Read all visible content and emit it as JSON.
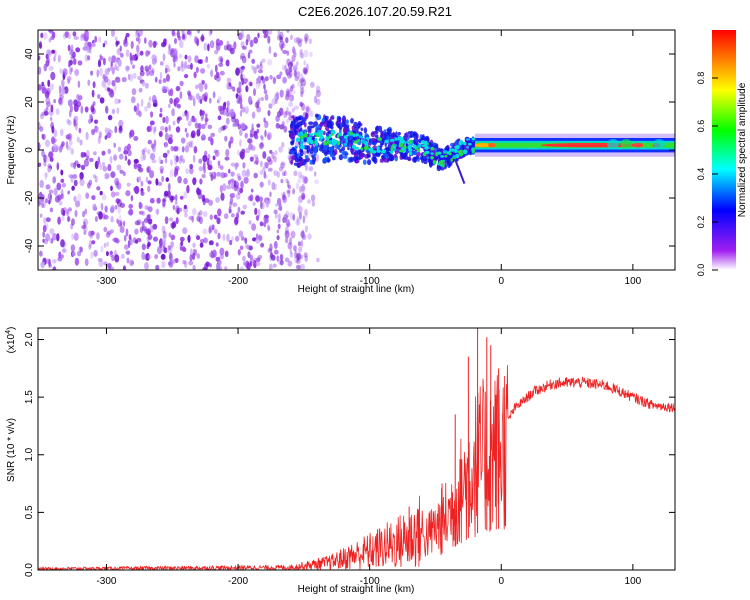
{
  "title": "C2E6.2026.107.20.59.R21",
  "chart_data": [
    {
      "type": "heatmap",
      "xlabel": "Height of straight line (km)",
      "ylabel": "Frequency (Hz)",
      "xlim": [
        -352,
        132
      ],
      "ylim": [
        -50,
        50
      ],
      "xticks": [
        -300,
        -200,
        -100,
        0,
        100
      ],
      "yticks": [
        -40,
        -20,
        0,
        20,
        40
      ],
      "colorbar": {
        "label": "Normalized spectral amplitude",
        "range": [
          0,
          1
        ],
        "ticks": [
          "0.0",
          "0.2",
          "0.4",
          "0.6",
          "0.8"
        ],
        "colors": [
          "#ffffff",
          "#a020f0",
          "#0000ff",
          "#00ffff",
          "#00ff00",
          "#ffff00",
          "#ff0000"
        ]
      },
      "regions": [
        {
          "name": "noise",
          "x_range": [
            -352,
            -148
          ],
          "freq_range": [
            -50,
            50
          ],
          "amplitude": 0.05
        },
        {
          "name": "transition",
          "x_range": [
            -160,
            -20
          ],
          "freq_range": [
            -12,
            14
          ],
          "amplitude": 0.35
        },
        {
          "name": "signal",
          "x_range": [
            -20,
            132
          ],
          "freq_center": 2,
          "freq_halfwidth": 3,
          "amplitude": 0.8
        }
      ],
      "ridge": [
        {
          "x": -160,
          "f": 3
        },
        {
          "x": -140,
          "f": 5
        },
        {
          "x": -120,
          "f": 5
        },
        {
          "x": -100,
          "f": 2
        },
        {
          "x": -80,
          "f": 2
        },
        {
          "x": -60,
          "f": 1
        },
        {
          "x": -45,
          "f": -4
        },
        {
          "x": -30,
          "f": 1
        },
        {
          "x": -20,
          "f": 2
        },
        {
          "x": 0,
          "f": 2
        },
        {
          "x": 40,
          "f": 2
        },
        {
          "x": 80,
          "f": 2
        },
        {
          "x": 100,
          "f": 2
        },
        {
          "x": 132,
          "f": 2
        }
      ]
    },
    {
      "type": "line",
      "xlabel": "Height of straight line (km)",
      "ylabel": "SNR (10 * v/v)",
      "yscale_label": "(x10",
      "yscale_exp": "4",
      "yscale_close": ")",
      "xlim": [
        -352,
        132
      ],
      "ylim": [
        0,
        2.1
      ],
      "xticks": [
        -300,
        -200,
        -100,
        0,
        100
      ],
      "yticks": [
        "0.0",
        "0.5",
        "1.0",
        "1.5",
        "2.0"
      ],
      "color": "#ee2222",
      "envelope": [
        {
          "x": -352,
          "y": 0.01
        },
        {
          "x": -160,
          "y": 0.02
        },
        {
          "x": -130,
          "y": 0.06
        },
        {
          "x": -110,
          "y": 0.12
        },
        {
          "x": -90,
          "y": 0.18
        },
        {
          "x": -70,
          "y": 0.25
        },
        {
          "x": -55,
          "y": 0.35
        },
        {
          "x": -40,
          "y": 0.55
        },
        {
          "x": -30,
          "y": 0.8
        },
        {
          "x": -20,
          "y": 1.05
        },
        {
          "x": -10,
          "y": 1.15
        },
        {
          "x": 0,
          "y": 1.2
        },
        {
          "x": 10,
          "y": 1.4
        },
        {
          "x": 25,
          "y": 1.55
        },
        {
          "x": 40,
          "y": 1.62
        },
        {
          "x": 60,
          "y": 1.63
        },
        {
          "x": 80,
          "y": 1.6
        },
        {
          "x": 100,
          "y": 1.5
        },
        {
          "x": 115,
          "y": 1.43
        },
        {
          "x": 132,
          "y": 1.41
        }
      ],
      "spikes": [
        {
          "x": -18,
          "y": 2.1
        },
        {
          "x": -11,
          "y": 2.02
        },
        {
          "x": -8,
          "y": 1.95
        },
        {
          "x": -25,
          "y": 1.85
        },
        {
          "x": -2,
          "y": 1.75
        },
        {
          "x": -35,
          "y": 1.35
        },
        {
          "x": -45,
          "y": 0.75
        },
        {
          "x": -70,
          "y": 0.55
        }
      ]
    }
  ]
}
